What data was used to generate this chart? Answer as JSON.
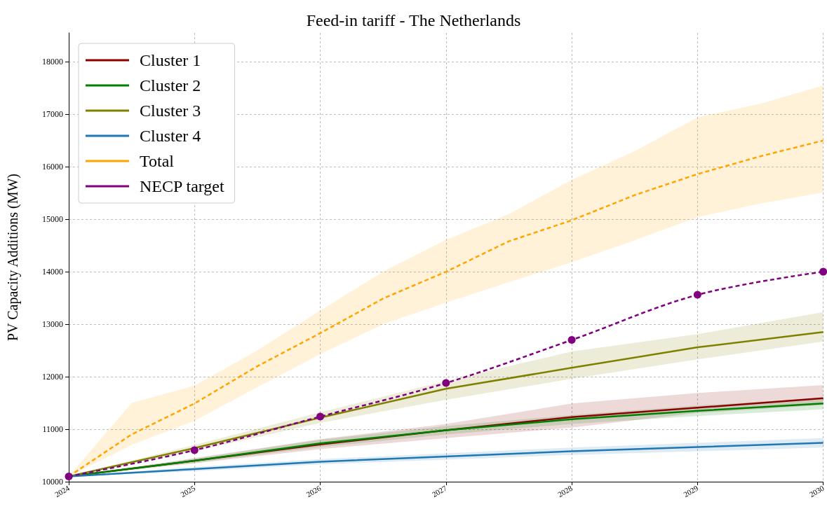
{
  "chart_data": {
    "type": "line",
    "title": "Feed-in tariff - The Netherlands",
    "ylabel": "PV Capacity Additions (MW)",
    "x": [
      2024,
      2025,
      2026,
      2027,
      2028,
      2029,
      2030
    ],
    "xlim": [
      2024,
      2030
    ],
    "xticks": [
      2024,
      2025,
      2026,
      2027,
      2028,
      2029,
      2030
    ],
    "ylim": [
      10000,
      18550
    ],
    "yticks": [
      10000,
      11000,
      12000,
      13000,
      14000,
      15000,
      16000,
      17000,
      18000
    ],
    "grid": true,
    "legend": "top left",
    "line_style": "solid",
    "marker": "none",
    "series": [
      {
        "name": "Cluster 1",
        "color": "#8b0000",
        "values": [
          10100,
          10400,
          10710,
          10980,
          11230,
          11410,
          11590
        ],
        "lower": [
          10100,
          10350,
          10620,
          10830,
          11030,
          11310,
          11460
        ],
        "upper": [
          10100,
          10450,
          10810,
          11100,
          11490,
          11690,
          11840
        ]
      },
      {
        "name": "Cluster 2",
        "color": "#008000",
        "values": [
          10100,
          10400,
          10730,
          10980,
          11190,
          11350,
          11490
        ],
        "lower": [
          10100,
          10360,
          10660,
          10900,
          11100,
          11250,
          11380
        ],
        "upper": [
          10100,
          10440,
          10800,
          11060,
          11270,
          11450,
          11600
        ]
      },
      {
        "name": "Cluster 3",
        "color": "#808000",
        "values": [
          10100,
          10640,
          11220,
          11770,
          12170,
          12560,
          12850
        ],
        "lower": [
          10100,
          10580,
          11120,
          11560,
          11960,
          12330,
          12670
        ],
        "upper": [
          10100,
          10700,
          11320,
          11920,
          12480,
          12810,
          13230
        ]
      },
      {
        "name": "Cluster 4",
        "color": "#1f77b4",
        "values": [
          10100,
          10240,
          10380,
          10480,
          10580,
          10660,
          10740
        ],
        "lower": [
          10100,
          10200,
          10330,
          10420,
          10510,
          10580,
          10650
        ],
        "upper": [
          10100,
          10280,
          10430,
          10540,
          10650,
          10740,
          10830
        ]
      },
      {
        "name": "Total",
        "color": "#ffa500",
        "line_style": "dashed",
        "x": [
          2024,
          2024.5,
          2025,
          2025.5,
          2026,
          2026.5,
          2027,
          2027.5,
          2028,
          2028.5,
          2029,
          2029.5,
          2030
        ],
        "values": [
          10100,
          10900,
          11490,
          12200,
          12830,
          13490,
          14000,
          14580,
          14980,
          15460,
          15860,
          16200,
          16500
        ],
        "lower": [
          10100,
          10700,
          11160,
          11800,
          12430,
          13000,
          13410,
          13800,
          14180,
          14600,
          15040,
          15300,
          15510
        ],
        "upper": [
          10100,
          11500,
          11830,
          12500,
          13260,
          14000,
          14610,
          15100,
          15750,
          16300,
          16940,
          17200,
          17550
        ]
      },
      {
        "name": "NECP target",
        "color": "#800080",
        "line_style": "dashed",
        "marker": "circle",
        "values": [
          10100,
          10600,
          11240,
          11880,
          12700,
          13560,
          14000
        ]
      }
    ]
  }
}
